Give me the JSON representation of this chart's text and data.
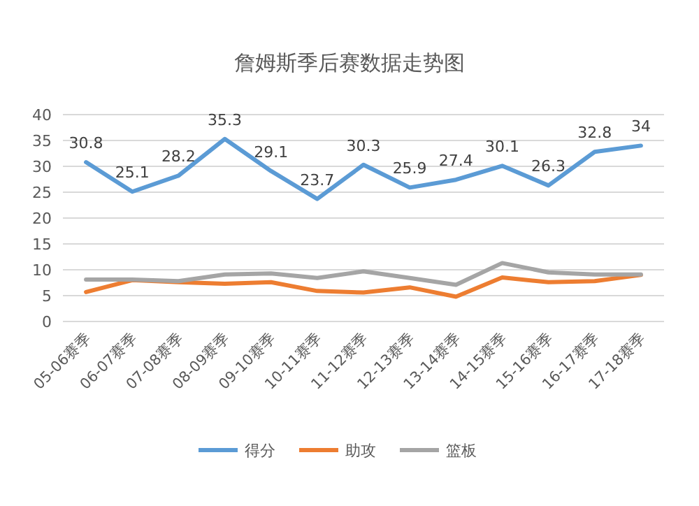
{
  "chart_data": {
    "type": "line",
    "title": "詹姆斯季后赛数据走势图",
    "categories": [
      "05-06赛季",
      "06-07赛季",
      "07-08赛季",
      "08-09赛季",
      "09-10赛季",
      "10-11赛季",
      "11-12赛季",
      "12-13赛季",
      "13-14赛季",
      "14-15赛季",
      "15-16赛季",
      "16-17赛季",
      "17-18赛季"
    ],
    "series": [
      {
        "name": "得分",
        "color": "#5b9bd5",
        "values": [
          30.8,
          25.1,
          28.2,
          35.3,
          29.1,
          23.7,
          30.3,
          25.9,
          27.4,
          30.1,
          26.3,
          32.8,
          34
        ],
        "value_labels": [
          "30.8",
          "25.1",
          "28.2",
          "35.3",
          "29.1",
          "23.7",
          "30.3",
          "25.9",
          "27.4",
          "30.1",
          "26.3",
          "32.8",
          "34"
        ]
      },
      {
        "name": "助攻",
        "color": "#ed7d31",
        "values": [
          5.7,
          8.0,
          7.6,
          7.3,
          7.6,
          5.9,
          5.6,
          6.6,
          4.8,
          8.5,
          7.6,
          7.8,
          9.0
        ]
      },
      {
        "name": "篮板",
        "color": "#a5a5a5",
        "values": [
          8.1,
          8.1,
          7.8,
          9.1,
          9.3,
          8.4,
          9.7,
          8.4,
          7.1,
          11.3,
          9.5,
          9.1,
          9.1
        ]
      }
    ],
    "ylim": [
      0,
      40
    ],
    "yticks": [
      0,
      5,
      10,
      15,
      20,
      25,
      30,
      35,
      40
    ],
    "grid": "y",
    "legend": "bottom",
    "marker": "none",
    "line_style": "solid"
  }
}
